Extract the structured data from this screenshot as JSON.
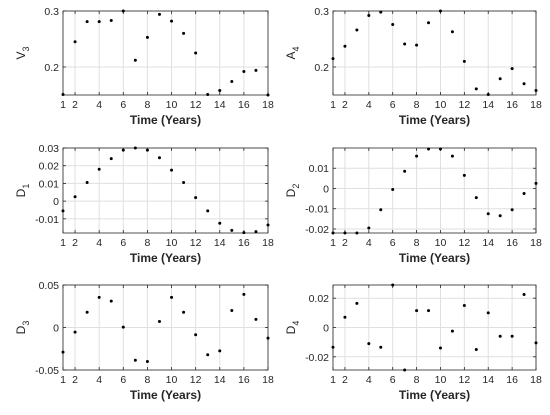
{
  "colors": {
    "background": "#ffffff",
    "axes": "#262626",
    "grid": "#dfdfdf",
    "marker": "#000000"
  },
  "chart_data": [
    {
      "type": "scatter",
      "ylabel_main": "V",
      "ylabel_sub": "3",
      "xlabel": "Time (Years)",
      "xlim": [
        1,
        18
      ],
      "ylim": [
        0.15,
        0.3
      ],
      "xticks": [
        1,
        2,
        4,
        6,
        8,
        10,
        12,
        14,
        16,
        18
      ],
      "yticks": [
        {
          "v": 0.2,
          "label": "0.2"
        },
        {
          "v": 0.3,
          "label": "0.3"
        }
      ],
      "x": [
        1,
        2,
        3,
        4,
        5,
        6,
        7,
        8,
        9,
        10,
        11,
        12,
        13,
        14,
        15,
        16,
        17,
        18
      ],
      "y": [
        0.151,
        0.245,
        0.281,
        0.281,
        0.283,
        0.305,
        0.212,
        0.253,
        0.294,
        0.282,
        0.26,
        0.225,
        0.151,
        0.158,
        0.174,
        0.192,
        0.194,
        0.15
      ]
    },
    {
      "type": "scatter",
      "ylabel_main": "A",
      "ylabel_sub": "4",
      "xlabel": "Time (Years)",
      "xlim": [
        1,
        18
      ],
      "ylim": [
        0.15,
        0.3
      ],
      "xticks": [
        1,
        2,
        4,
        6,
        8,
        10,
        12,
        14,
        16,
        18
      ],
      "yticks": [
        {
          "v": 0.2,
          "label": "0.2"
        },
        {
          "v": 0.3,
          "label": "0.3"
        }
      ],
      "x": [
        1,
        2,
        3,
        4,
        5,
        6,
        7,
        8,
        9,
        10,
        11,
        12,
        13,
        14,
        15,
        16,
        17,
        18
      ],
      "y": [
        0.215,
        0.237,
        0.266,
        0.292,
        0.298,
        0.276,
        0.241,
        0.239,
        0.279,
        0.3,
        0.263,
        0.21,
        0.161,
        0.151,
        0.179,
        0.197,
        0.17,
        0.158
      ]
    },
    {
      "type": "scatter",
      "ylabel_main": "D",
      "ylabel_sub": "1",
      "xlabel": "Time (Years)",
      "xlim": [
        1,
        18
      ],
      "ylim": [
        -0.018,
        0.03
      ],
      "xticks": [
        1,
        2,
        4,
        6,
        8,
        10,
        12,
        14,
        16,
        18
      ],
      "yticks": [
        {
          "v": -0.01,
          "label": "-0.01"
        },
        {
          "v": 0,
          "label": "0"
        },
        {
          "v": 0.01,
          "label": "0.01"
        },
        {
          "v": 0.02,
          "label": "0.02"
        },
        {
          "v": 0.03,
          "label": "0.03"
        }
      ],
      "x": [
        1,
        2,
        3,
        4,
        5,
        6,
        7,
        8,
        9,
        10,
        11,
        12,
        13,
        14,
        15,
        16,
        17,
        18
      ],
      "y": [
        -0.0055,
        0.0025,
        0.0105,
        0.018,
        0.024,
        0.0288,
        0.0302,
        0.0288,
        0.0245,
        0.0175,
        0.0105,
        0.002,
        -0.0055,
        -0.0125,
        -0.0165,
        -0.0178,
        -0.0172,
        -0.0135
      ]
    },
    {
      "type": "scatter",
      "ylabel_main": "D",
      "ylabel_sub": "2",
      "xlabel": "Time (Years)",
      "xlim": [
        1,
        18
      ],
      "ylim": [
        -0.022,
        0.02
      ],
      "xticks": [
        1,
        2,
        4,
        6,
        8,
        10,
        12,
        14,
        16,
        18
      ],
      "yticks": [
        {
          "v": -0.02,
          "label": "-0.02"
        },
        {
          "v": -0.01,
          "label": "-0.01"
        },
        {
          "v": 0,
          "label": "0"
        },
        {
          "v": 0.01,
          "label": "0.01"
        }
      ],
      "x": [
        1,
        2,
        3,
        4,
        5,
        6,
        7,
        8,
        9,
        10,
        11,
        12,
        13,
        14,
        15,
        16,
        17,
        18
      ],
      "y": [
        -0.023,
        -0.0235,
        -0.0235,
        -0.0195,
        -0.0105,
        -0.0005,
        0.0085,
        0.016,
        0.0195,
        0.0195,
        0.016,
        0.0065,
        -0.0045,
        -0.0125,
        -0.0135,
        -0.0105,
        -0.0025,
        0.0025
      ]
    },
    {
      "type": "scatter",
      "ylabel_main": "D",
      "ylabel_sub": "3",
      "xlabel": "Time (Years)",
      "xlim": [
        1,
        18
      ],
      "ylim": [
        -0.05,
        0.05
      ],
      "xticks": [
        1,
        2,
        4,
        6,
        8,
        10,
        12,
        14,
        16,
        18
      ],
      "yticks": [
        {
          "v": -0.05,
          "label": "-0.05"
        },
        {
          "v": 0,
          "label": "0"
        },
        {
          "v": 0.05,
          "label": "0.05"
        }
      ],
      "x": [
        1,
        2,
        3,
        4,
        5,
        6,
        7,
        8,
        9,
        10,
        11,
        12,
        13,
        14,
        15,
        16,
        17,
        18
      ],
      "y": [
        -0.029,
        -0.0055,
        0.018,
        0.0355,
        0.031,
        0.0005,
        -0.0385,
        -0.04,
        0.007,
        0.0355,
        0.018,
        -0.0085,
        -0.032,
        -0.0275,
        0.02,
        0.039,
        0.0095,
        -0.0125
      ]
    },
    {
      "type": "scatter",
      "ylabel_main": "D",
      "ylabel_sub": "4",
      "xlabel": "Time (Years)",
      "xlim": [
        1,
        18
      ],
      "ylim": [
        -0.029,
        0.029
      ],
      "xticks": [
        1,
        2,
        4,
        6,
        8,
        10,
        12,
        14,
        16,
        18
      ],
      "yticks": [
        {
          "v": -0.02,
          "label": "-0.02"
        },
        {
          "v": 0,
          "label": "0"
        },
        {
          "v": 0.02,
          "label": "0.02"
        }
      ],
      "x": [
        1,
        2,
        3,
        4,
        5,
        6,
        7,
        8,
        9,
        10,
        11,
        12,
        13,
        14,
        15,
        16,
        17,
        18
      ],
      "y": [
        -0.0135,
        0.007,
        0.0165,
        -0.011,
        -0.0135,
        0.029,
        -0.029,
        0.0115,
        0.0115,
        -0.014,
        -0.0025,
        0.015,
        -0.015,
        0.01,
        -0.006,
        -0.006,
        0.0225,
        -0.0105
      ]
    }
  ]
}
